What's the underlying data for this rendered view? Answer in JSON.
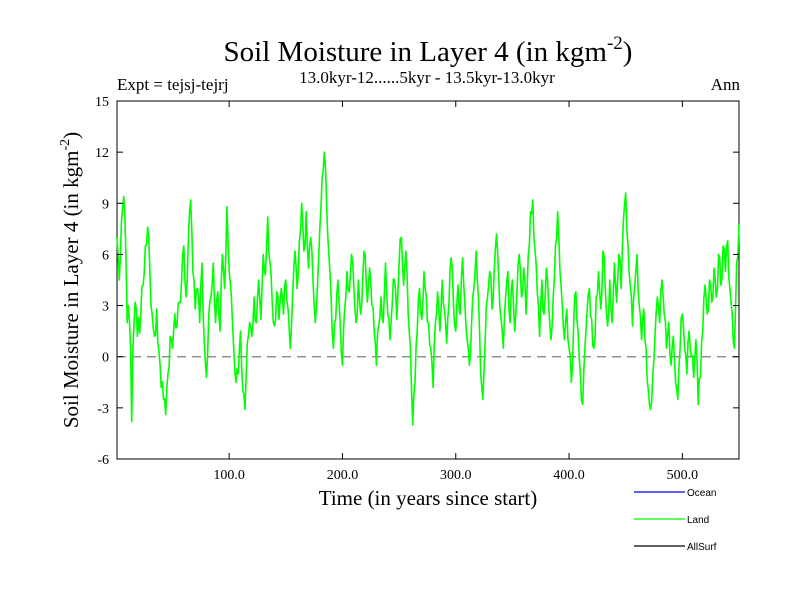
{
  "chart_data": {
    "type": "line",
    "title_main": "Soil Moisture in Layer 4 (in kgm",
    "title_sup": "-2",
    "title_close": ")",
    "subtitle": "13.0kyr-12......5kyr - 13.5kyr-13.0kyr",
    "expt_label": "Expt = tejsj-tejrj",
    "season_label": "Ann",
    "xlabel": "Time (in years since start)",
    "ylabel_main": "Soil Moisture in Layer 4 (in kgm",
    "ylabel_sup": "-2",
    "ylabel_close": ")",
    "xlim": [
      1,
      550
    ],
    "ylim": [
      -6,
      15
    ],
    "xticks": [
      100,
      200,
      300,
      400,
      500
    ],
    "xtick_labels": [
      "100.0",
      "200.0",
      "300.0",
      "400.0",
      "500.0"
    ],
    "yticks": [
      15,
      12,
      9,
      6,
      3,
      0,
      -3,
      -6
    ],
    "ytick_labels": [
      "15",
      "12",
      "9",
      "6",
      "3",
      "0",
      "-3",
      "-6"
    ],
    "zero_line": {
      "value": 0,
      "style": "dashed",
      "color": "#7f7f7f"
    },
    "legend": [
      {
        "name": "Ocean",
        "color": "#0000ff"
      },
      {
        "name": "Land",
        "color": "#00ff00"
      },
      {
        "name": "AllSurf",
        "color": "#000000"
      }
    ],
    "series": [
      {
        "name": "Land",
        "color": "#00ff00",
        "anchors": [
          [
            1,
            7.0
          ],
          [
            3,
            4.5
          ],
          [
            5,
            8.0
          ],
          [
            7,
            9.4
          ],
          [
            9,
            5.5
          ],
          [
            10,
            2.0
          ],
          [
            11,
            3.0
          ],
          [
            13,
            0.5
          ],
          [
            14,
            -3.8
          ],
          [
            15,
            0.5
          ],
          [
            17,
            3.2
          ],
          [
            19,
            1.2
          ],
          [
            22,
            2.5
          ],
          [
            24,
            4.2
          ],
          [
            26,
            6.5
          ],
          [
            28,
            7.6
          ],
          [
            30,
            5.0
          ],
          [
            32,
            2.5
          ],
          [
            34,
            1.2
          ],
          [
            36,
            2.8
          ],
          [
            38,
            0.3
          ],
          [
            40,
            -1.8
          ],
          [
            42,
            -2.5
          ],
          [
            44,
            -3.4
          ],
          [
            46,
            -1.0
          ],
          [
            48,
            1.2
          ],
          [
            50,
            0.5
          ],
          [
            52,
            2.5
          ],
          [
            54,
            1.8
          ],
          [
            56,
            3.2
          ],
          [
            58,
            4.5
          ],
          [
            60,
            6.5
          ],
          [
            62,
            3.5
          ],
          [
            64,
            7.0
          ],
          [
            66,
            9.2
          ],
          [
            68,
            5.0
          ],
          [
            70,
            2.8
          ],
          [
            72,
            4.0
          ],
          [
            74,
            2.0
          ],
          [
            76,
            5.5
          ],
          [
            78,
            1.0
          ],
          [
            80,
            -1.2
          ],
          [
            82,
            2.5
          ],
          [
            84,
            3.5
          ],
          [
            86,
            5.5
          ],
          [
            88,
            2.0
          ],
          [
            90,
            3.8
          ],
          [
            92,
            1.5
          ],
          [
            94,
            6.0
          ],
          [
            96,
            4.0
          ],
          [
            98,
            8.8
          ],
          [
            100,
            5.0
          ],
          [
            102,
            3.5
          ],
          [
            104,
            0.5
          ],
          [
            106,
            -1.5
          ],
          [
            108,
            -1.0
          ],
          [
            110,
            1.5
          ],
          [
            112,
            -2.0
          ],
          [
            114,
            -3.1
          ],
          [
            116,
            0.8
          ],
          [
            118,
            2.0
          ],
          [
            120,
            1.2
          ],
          [
            122,
            3.5
          ],
          [
            124,
            2.0
          ],
          [
            126,
            4.5
          ],
          [
            128,
            2.2
          ],
          [
            130,
            6.0
          ],
          [
            132,
            4.8
          ],
          [
            134,
            8.2
          ],
          [
            136,
            5.5
          ],
          [
            138,
            3.2
          ],
          [
            140,
            1.8
          ],
          [
            142,
            3.8
          ],
          [
            144,
            2.2
          ],
          [
            146,
            4.0
          ],
          [
            148,
            2.5
          ],
          [
            150,
            4.5
          ],
          [
            152,
            2.8
          ],
          [
            154,
            0.5
          ],
          [
            156,
            3.5
          ],
          [
            158,
            6.2
          ],
          [
            160,
            4.0
          ],
          [
            162,
            6.8
          ],
          [
            164,
            9.0
          ],
          [
            166,
            6.2
          ],
          [
            168,
            8.5
          ],
          [
            170,
            5.2
          ],
          [
            172,
            7.0
          ],
          [
            174,
            4.5
          ],
          [
            176,
            2.0
          ],
          [
            178,
            4.2
          ],
          [
            180,
            7.5
          ],
          [
            182,
            10.5
          ],
          [
            184,
            12.0
          ],
          [
            186,
            9.0
          ],
          [
            188,
            6.0
          ],
          [
            190,
            3.5
          ],
          [
            192,
            0.5
          ],
          [
            194,
            2.2
          ],
          [
            196,
            4.5
          ],
          [
            198,
            2.0
          ],
          [
            200,
            -0.5
          ],
          [
            202,
            2.8
          ],
          [
            204,
            5.0
          ],
          [
            206,
            3.8
          ],
          [
            208,
            6.0
          ],
          [
            210,
            4.2
          ],
          [
            212,
            2.0
          ],
          [
            214,
            4.5
          ],
          [
            216,
            2.5
          ],
          [
            218,
            4.8
          ],
          [
            220,
            6.0
          ],
          [
            222,
            3.2
          ],
          [
            224,
            5.2
          ],
          [
            226,
            3.0
          ],
          [
            228,
            1.5
          ],
          [
            230,
            -0.5
          ],
          [
            232,
            1.8
          ],
          [
            234,
            3.5
          ],
          [
            236,
            2.0
          ],
          [
            238,
            5.5
          ],
          [
            240,
            2.5
          ],
          [
            242,
            1.0
          ],
          [
            244,
            3.2
          ],
          [
            246,
            4.5
          ],
          [
            248,
            2.2
          ],
          [
            250,
            5.5
          ],
          [
            252,
            7.0
          ],
          [
            254,
            4.2
          ],
          [
            256,
            6.2
          ],
          [
            258,
            2.5
          ],
          [
            260,
            0.5
          ],
          [
            262,
            -4.0
          ],
          [
            264,
            -1.5
          ],
          [
            266,
            1.5
          ],
          [
            268,
            4.0
          ],
          [
            270,
            2.2
          ],
          [
            272,
            5.0
          ],
          [
            274,
            3.5
          ],
          [
            276,
            2.0
          ],
          [
            278,
            0.5
          ],
          [
            280,
            -1.8
          ],
          [
            282,
            2.0
          ],
          [
            284,
            3.8
          ],
          [
            286,
            1.5
          ],
          [
            288,
            4.5
          ],
          [
            290,
            2.8
          ],
          [
            292,
            0.8
          ],
          [
            294,
            3.2
          ],
          [
            296,
            5.8
          ],
          [
            298,
            3.0
          ],
          [
            300,
            1.5
          ],
          [
            302,
            4.2
          ],
          [
            304,
            2.5
          ],
          [
            306,
            5.8
          ],
          [
            308,
            3.2
          ],
          [
            310,
            1.0
          ],
          [
            312,
            -0.5
          ],
          [
            314,
            2.0
          ],
          [
            316,
            4.0
          ],
          [
            318,
            6.2
          ],
          [
            320,
            3.5
          ],
          [
            322,
            -1.0
          ],
          [
            324,
            -2.5
          ],
          [
            326,
            1.0
          ],
          [
            328,
            3.5
          ],
          [
            330,
            5.0
          ],
          [
            332,
            2.8
          ],
          [
            334,
            5.2
          ],
          [
            336,
            7.2
          ],
          [
            338,
            4.5
          ],
          [
            340,
            2.2
          ],
          [
            342,
            0.5
          ],
          [
            344,
            3.5
          ],
          [
            346,
            5.0
          ],
          [
            348,
            2.0
          ],
          [
            350,
            4.5
          ],
          [
            352,
            1.5
          ],
          [
            354,
            3.8
          ],
          [
            356,
            6.0
          ],
          [
            358,
            3.5
          ],
          [
            360,
            5.2
          ],
          [
            362,
            2.5
          ],
          [
            364,
            6.0
          ],
          [
            366,
            8.5
          ],
          [
            368,
            9.2
          ],
          [
            370,
            6.2
          ],
          [
            372,
            3.8
          ],
          [
            374,
            1.2
          ],
          [
            376,
            4.5
          ],
          [
            378,
            2.5
          ],
          [
            380,
            5.2
          ],
          [
            382,
            3.0
          ],
          [
            384,
            1.0
          ],
          [
            386,
            3.5
          ],
          [
            388,
            6.5
          ],
          [
            390,
            8.5
          ],
          [
            392,
            5.0
          ],
          [
            394,
            3.0
          ],
          [
            396,
            1.0
          ],
          [
            398,
            2.8
          ],
          [
            400,
            0.5
          ],
          [
            402,
            -1.5
          ],
          [
            404,
            1.8
          ],
          [
            406,
            3.8
          ],
          [
            408,
            1.5
          ],
          [
            410,
            -1.0
          ],
          [
            412,
            -2.8
          ],
          [
            414,
            0.5
          ],
          [
            416,
            2.8
          ],
          [
            418,
            4.0
          ],
          [
            420,
            2.2
          ],
          [
            422,
            0.5
          ],
          [
            424,
            3.5
          ],
          [
            426,
            5.0
          ],
          [
            428,
            2.8
          ],
          [
            430,
            6.2
          ],
          [
            432,
            4.0
          ],
          [
            434,
            1.8
          ],
          [
            436,
            4.5
          ],
          [
            438,
            2.0
          ],
          [
            440,
            5.5
          ],
          [
            442,
            3.2
          ],
          [
            444,
            6.0
          ],
          [
            446,
            4.0
          ],
          [
            448,
            8.0
          ],
          [
            450,
            9.6
          ],
          [
            452,
            6.5
          ],
          [
            454,
            4.2
          ],
          [
            456,
            1.8
          ],
          [
            458,
            4.2
          ],
          [
            460,
            6.0
          ],
          [
            462,
            3.0
          ],
          [
            464,
            1.0
          ],
          [
            466,
            2.8
          ],
          [
            468,
            0.5
          ],
          [
            470,
            -2.0
          ],
          [
            472,
            -3.1
          ],
          [
            474,
            -1.0
          ],
          [
            476,
            1.5
          ],
          [
            478,
            3.5
          ],
          [
            480,
            2.0
          ],
          [
            482,
            4.5
          ],
          [
            484,
            2.5
          ],
          [
            486,
            0.5
          ],
          [
            488,
            2.0
          ],
          [
            490,
            -0.5
          ],
          [
            492,
            1.2
          ],
          [
            494,
            -1.5
          ],
          [
            496,
            -2.5
          ],
          [
            498,
            0.5
          ],
          [
            500,
            2.5
          ],
          [
            502,
            0.5
          ],
          [
            504,
            -1.0
          ],
          [
            506,
            1.5
          ],
          [
            508,
            0.0
          ],
          [
            510,
            -1.2
          ],
          [
            512,
            1.0
          ],
          [
            514,
            -2.8
          ],
          [
            516,
            -1.2
          ],
          [
            518,
            1.5
          ],
          [
            520,
            4.2
          ],
          [
            522,
            2.5
          ],
          [
            524,
            4.5
          ],
          [
            526,
            3.2
          ],
          [
            528,
            5.2
          ],
          [
            530,
            3.5
          ],
          [
            532,
            6.0
          ],
          [
            534,
            4.2
          ],
          [
            536,
            6.5
          ],
          [
            538,
            5.0
          ],
          [
            540,
            6.8
          ],
          [
            542,
            4.0
          ],
          [
            544,
            2.5
          ],
          [
            546,
            0.5
          ],
          [
            548,
            5.5
          ],
          [
            550,
            7.8
          ]
        ]
      }
    ]
  }
}
